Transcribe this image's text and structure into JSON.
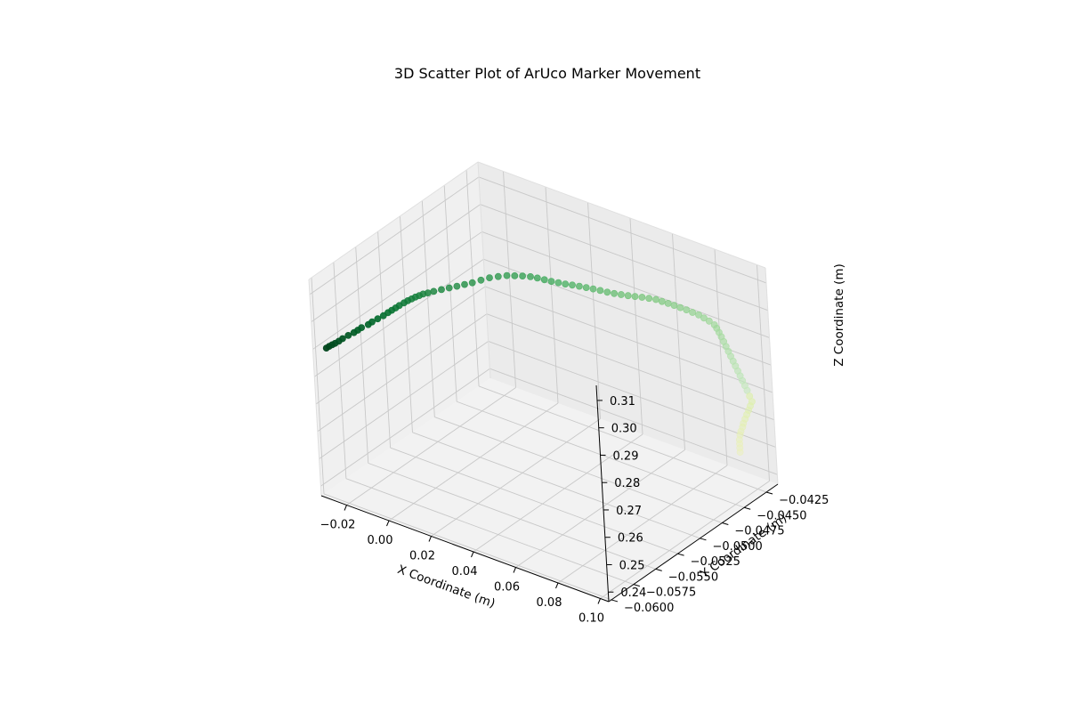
{
  "chart_data": {
    "type": "scatter",
    "projection": "3d",
    "title": "3D Scatter Plot of ArUco Marker Movement",
    "xlabel": "X Coordinate (m)",
    "ylabel": "Y Coordinate (m)",
    "zlabel": "Z Coordinate (m)",
    "xlim": [
      -0.032,
      0.104
    ],
    "ylim": [
      -0.0603,
      -0.0412
    ],
    "zlim": [
      0.2365,
      0.3155
    ],
    "xticks": [
      "−0.02",
      "0.00",
      "0.02",
      "0.04",
      "0.06",
      "0.08",
      "0.10"
    ],
    "yticks": [
      "−0.0600",
      "−0.0575",
      "−0.0550",
      "−0.0525",
      "−0.0500",
      "−0.0475",
      "−0.0450",
      "−0.0425"
    ],
    "zticks": [
      "0.24",
      "0.25",
      "0.26",
      "0.27",
      "0.28",
      "0.29",
      "0.30",
      "0.31"
    ],
    "grid": true,
    "colormap": "Greens",
    "color_by": "point order (first point darkest green, last point palest yellow-green)",
    "points": [
      [
        -0.029,
        -0.0595,
        0.2895
      ],
      [
        -0.028,
        -0.0594,
        0.2902
      ],
      [
        -0.027,
        -0.0593,
        0.2908
      ],
      [
        -0.026,
        -0.0592,
        0.2914
      ],
      [
        -0.025,
        -0.059,
        0.292
      ],
      [
        -0.024,
        -0.0588,
        0.2928
      ],
      [
        -0.0225,
        -0.0585,
        0.2937
      ],
      [
        -0.021,
        -0.0582,
        0.2945
      ],
      [
        -0.02,
        -0.058,
        0.2952
      ],
      [
        -0.019,
        -0.0578,
        0.296
      ],
      [
        -0.017,
        -0.0575,
        0.297
      ],
      [
        -0.016,
        -0.0573,
        0.2978
      ],
      [
        -0.0145,
        -0.057,
        0.2987
      ],
      [
        -0.013,
        -0.0567,
        0.2996
      ],
      [
        -0.012,
        -0.0564,
        0.3003
      ],
      [
        -0.011,
        -0.0562,
        0.301
      ],
      [
        -0.01,
        -0.056,
        0.3017
      ],
      [
        -0.009,
        -0.0558,
        0.3024
      ],
      [
        -0.008,
        -0.0555,
        0.303
      ],
      [
        -0.007,
        -0.0553,
        0.3036
      ],
      [
        -0.006,
        -0.0551,
        0.3041
      ],
      [
        -0.005,
        -0.0549,
        0.3046
      ],
      [
        -0.004,
        -0.0547,
        0.305
      ],
      [
        -0.003,
        -0.0545,
        0.3054
      ],
      [
        -0.0015,
        -0.0543,
        0.3058
      ],
      [
        0.0,
        -0.054,
        0.3061
      ],
      [
        0.002,
        -0.0536,
        0.3064
      ],
      [
        0.004,
        -0.0532,
        0.3067
      ],
      [
        0.006,
        -0.0528,
        0.307
      ],
      [
        0.008,
        -0.0524,
        0.3073
      ],
      [
        0.01,
        -0.052,
        0.3076
      ],
      [
        0.012,
        -0.0515,
        0.308
      ],
      [
        0.014,
        -0.051,
        0.3083
      ],
      [
        0.016,
        -0.0505,
        0.3082
      ],
      [
        0.018,
        -0.05,
        0.308
      ],
      [
        0.02,
        -0.0496,
        0.3076
      ],
      [
        0.022,
        -0.0492,
        0.3072
      ],
      [
        0.024,
        -0.0488,
        0.3066
      ],
      [
        0.026,
        -0.0485,
        0.306
      ],
      [
        0.028,
        -0.0482,
        0.3053
      ],
      [
        0.03,
        -0.0479,
        0.3046
      ],
      [
        0.032,
        -0.0476,
        0.304
      ],
      [
        0.034,
        -0.0473,
        0.3034
      ],
      [
        0.036,
        -0.047,
        0.3029
      ],
      [
        0.038,
        -0.0467,
        0.3024
      ],
      [
        0.04,
        -0.0464,
        0.3018
      ],
      [
        0.042,
        -0.0461,
        0.3012
      ],
      [
        0.044,
        -0.0458,
        0.3005
      ],
      [
        0.046,
        -0.0455,
        0.2998
      ],
      [
        0.048,
        -0.0452,
        0.2992
      ],
      [
        0.05,
        -0.0449,
        0.2987
      ],
      [
        0.052,
        -0.0446,
        0.2982
      ],
      [
        0.054,
        -0.0443,
        0.2978
      ],
      [
        0.056,
        -0.044,
        0.2974
      ],
      [
        0.058,
        -0.0437,
        0.2969
      ],
      [
        0.06,
        -0.0434,
        0.2964
      ],
      [
        0.062,
        -0.0432,
        0.2958
      ],
      [
        0.064,
        -0.043,
        0.2952
      ],
      [
        0.066,
        -0.0428,
        0.2946
      ],
      [
        0.068,
        -0.0426,
        0.2939
      ],
      [
        0.07,
        -0.0424,
        0.2932
      ],
      [
        0.072,
        -0.0422,
        0.2924
      ],
      [
        0.074,
        -0.042,
        0.2916
      ],
      [
        0.076,
        -0.0419,
        0.2908
      ],
      [
        0.078,
        -0.0418,
        0.29
      ],
      [
        0.08,
        -0.0417,
        0.289
      ],
      [
        0.081,
        -0.0417,
        0.288
      ],
      [
        0.082,
        -0.0417,
        0.2868
      ],
      [
        0.083,
        -0.0417,
        0.2855
      ],
      [
        0.084,
        -0.0417,
        0.284
      ],
      [
        0.085,
        -0.0417,
        0.2825
      ],
      [
        0.086,
        -0.0417,
        0.281
      ],
      [
        0.087,
        -0.0417,
        0.2795
      ],
      [
        0.088,
        -0.0417,
        0.278
      ],
      [
        0.089,
        -0.0417,
        0.2765
      ],
      [
        0.09,
        -0.0417,
        0.275
      ],
      [
        0.091,
        -0.0417,
        0.2735
      ],
      [
        0.092,
        -0.0417,
        0.272
      ],
      [
        0.093,
        -0.0417,
        0.2705
      ],
      [
        0.094,
        -0.0417,
        0.269
      ],
      [
        0.095,
        -0.0417,
        0.2672
      ],
      [
        0.096,
        -0.0417,
        0.2655
      ],
      [
        0.0955,
        -0.0418,
        0.264
      ],
      [
        0.095,
        -0.0419,
        0.2625
      ],
      [
        0.0945,
        -0.042,
        0.261
      ],
      [
        0.094,
        -0.0421,
        0.2595
      ],
      [
        0.0935,
        -0.0422,
        0.258
      ],
      [
        0.093,
        -0.0422,
        0.2565
      ],
      [
        0.0925,
        -0.0423,
        0.255
      ],
      [
        0.092,
        -0.0423,
        0.2535
      ],
      [
        0.092,
        -0.0424,
        0.252
      ],
      [
        0.092,
        -0.0424,
        0.2505
      ],
      [
        0.092,
        -0.0424,
        0.249
      ],
      [
        0.092,
        -0.0424,
        0.2475
      ]
    ]
  }
}
